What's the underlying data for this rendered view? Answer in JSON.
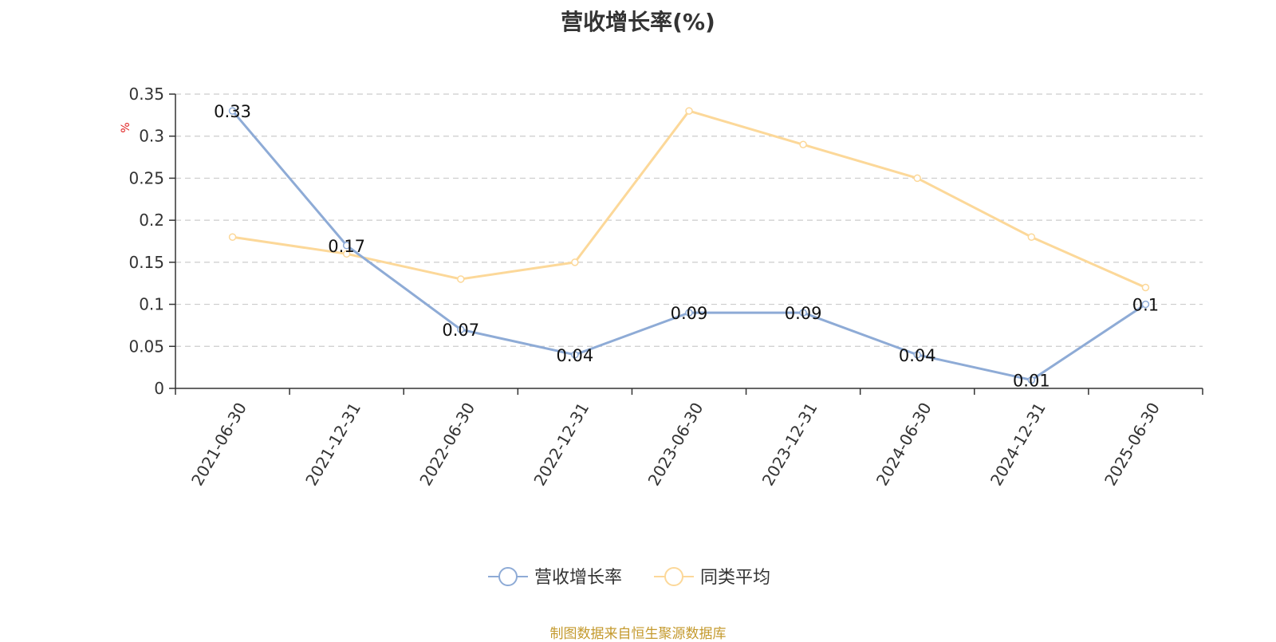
{
  "title": "营收增长率(%)",
  "source_note": "制图数据来自恒生聚源数据库",
  "chart_data": {
    "type": "line",
    "title": "营收增长率(%)",
    "ylabel": "%",
    "xlabel": "",
    "ylim": [
      0,
      0.35
    ],
    "yticks": [
      "0",
      "0.05",
      "0.1",
      "0.15",
      "0.2",
      "0.25",
      "0.3",
      "0.35"
    ],
    "ytick_values": [
      0,
      0.05,
      0.1,
      0.15,
      0.2,
      0.25,
      0.3,
      0.35
    ],
    "grid": true,
    "legend_position": "bottom-center",
    "categories": [
      "2021-06-30",
      "2021-12-31",
      "2022-06-30",
      "2022-12-31",
      "2023-06-30",
      "2023-12-31",
      "2024-06-30",
      "2024-12-31",
      "2025-06-30"
    ],
    "series": [
      {
        "name": "营收增长率",
        "color": "#8eabd6",
        "values": [
          0.33,
          0.17,
          0.07,
          0.04,
          0.09,
          0.09,
          0.04,
          0.01,
          0.1
        ],
        "labels": [
          "0.33",
          "0.17",
          "0.07",
          "0.04",
          "0.09",
          "0.09",
          "0.04",
          "0.01",
          "0.1"
        ]
      },
      {
        "name": "同类平均",
        "color": "#fcd899",
        "values": [
          0.18,
          0.16,
          0.13,
          0.15,
          0.33,
          0.29,
          0.25,
          0.18,
          0.12
        ]
      }
    ]
  }
}
